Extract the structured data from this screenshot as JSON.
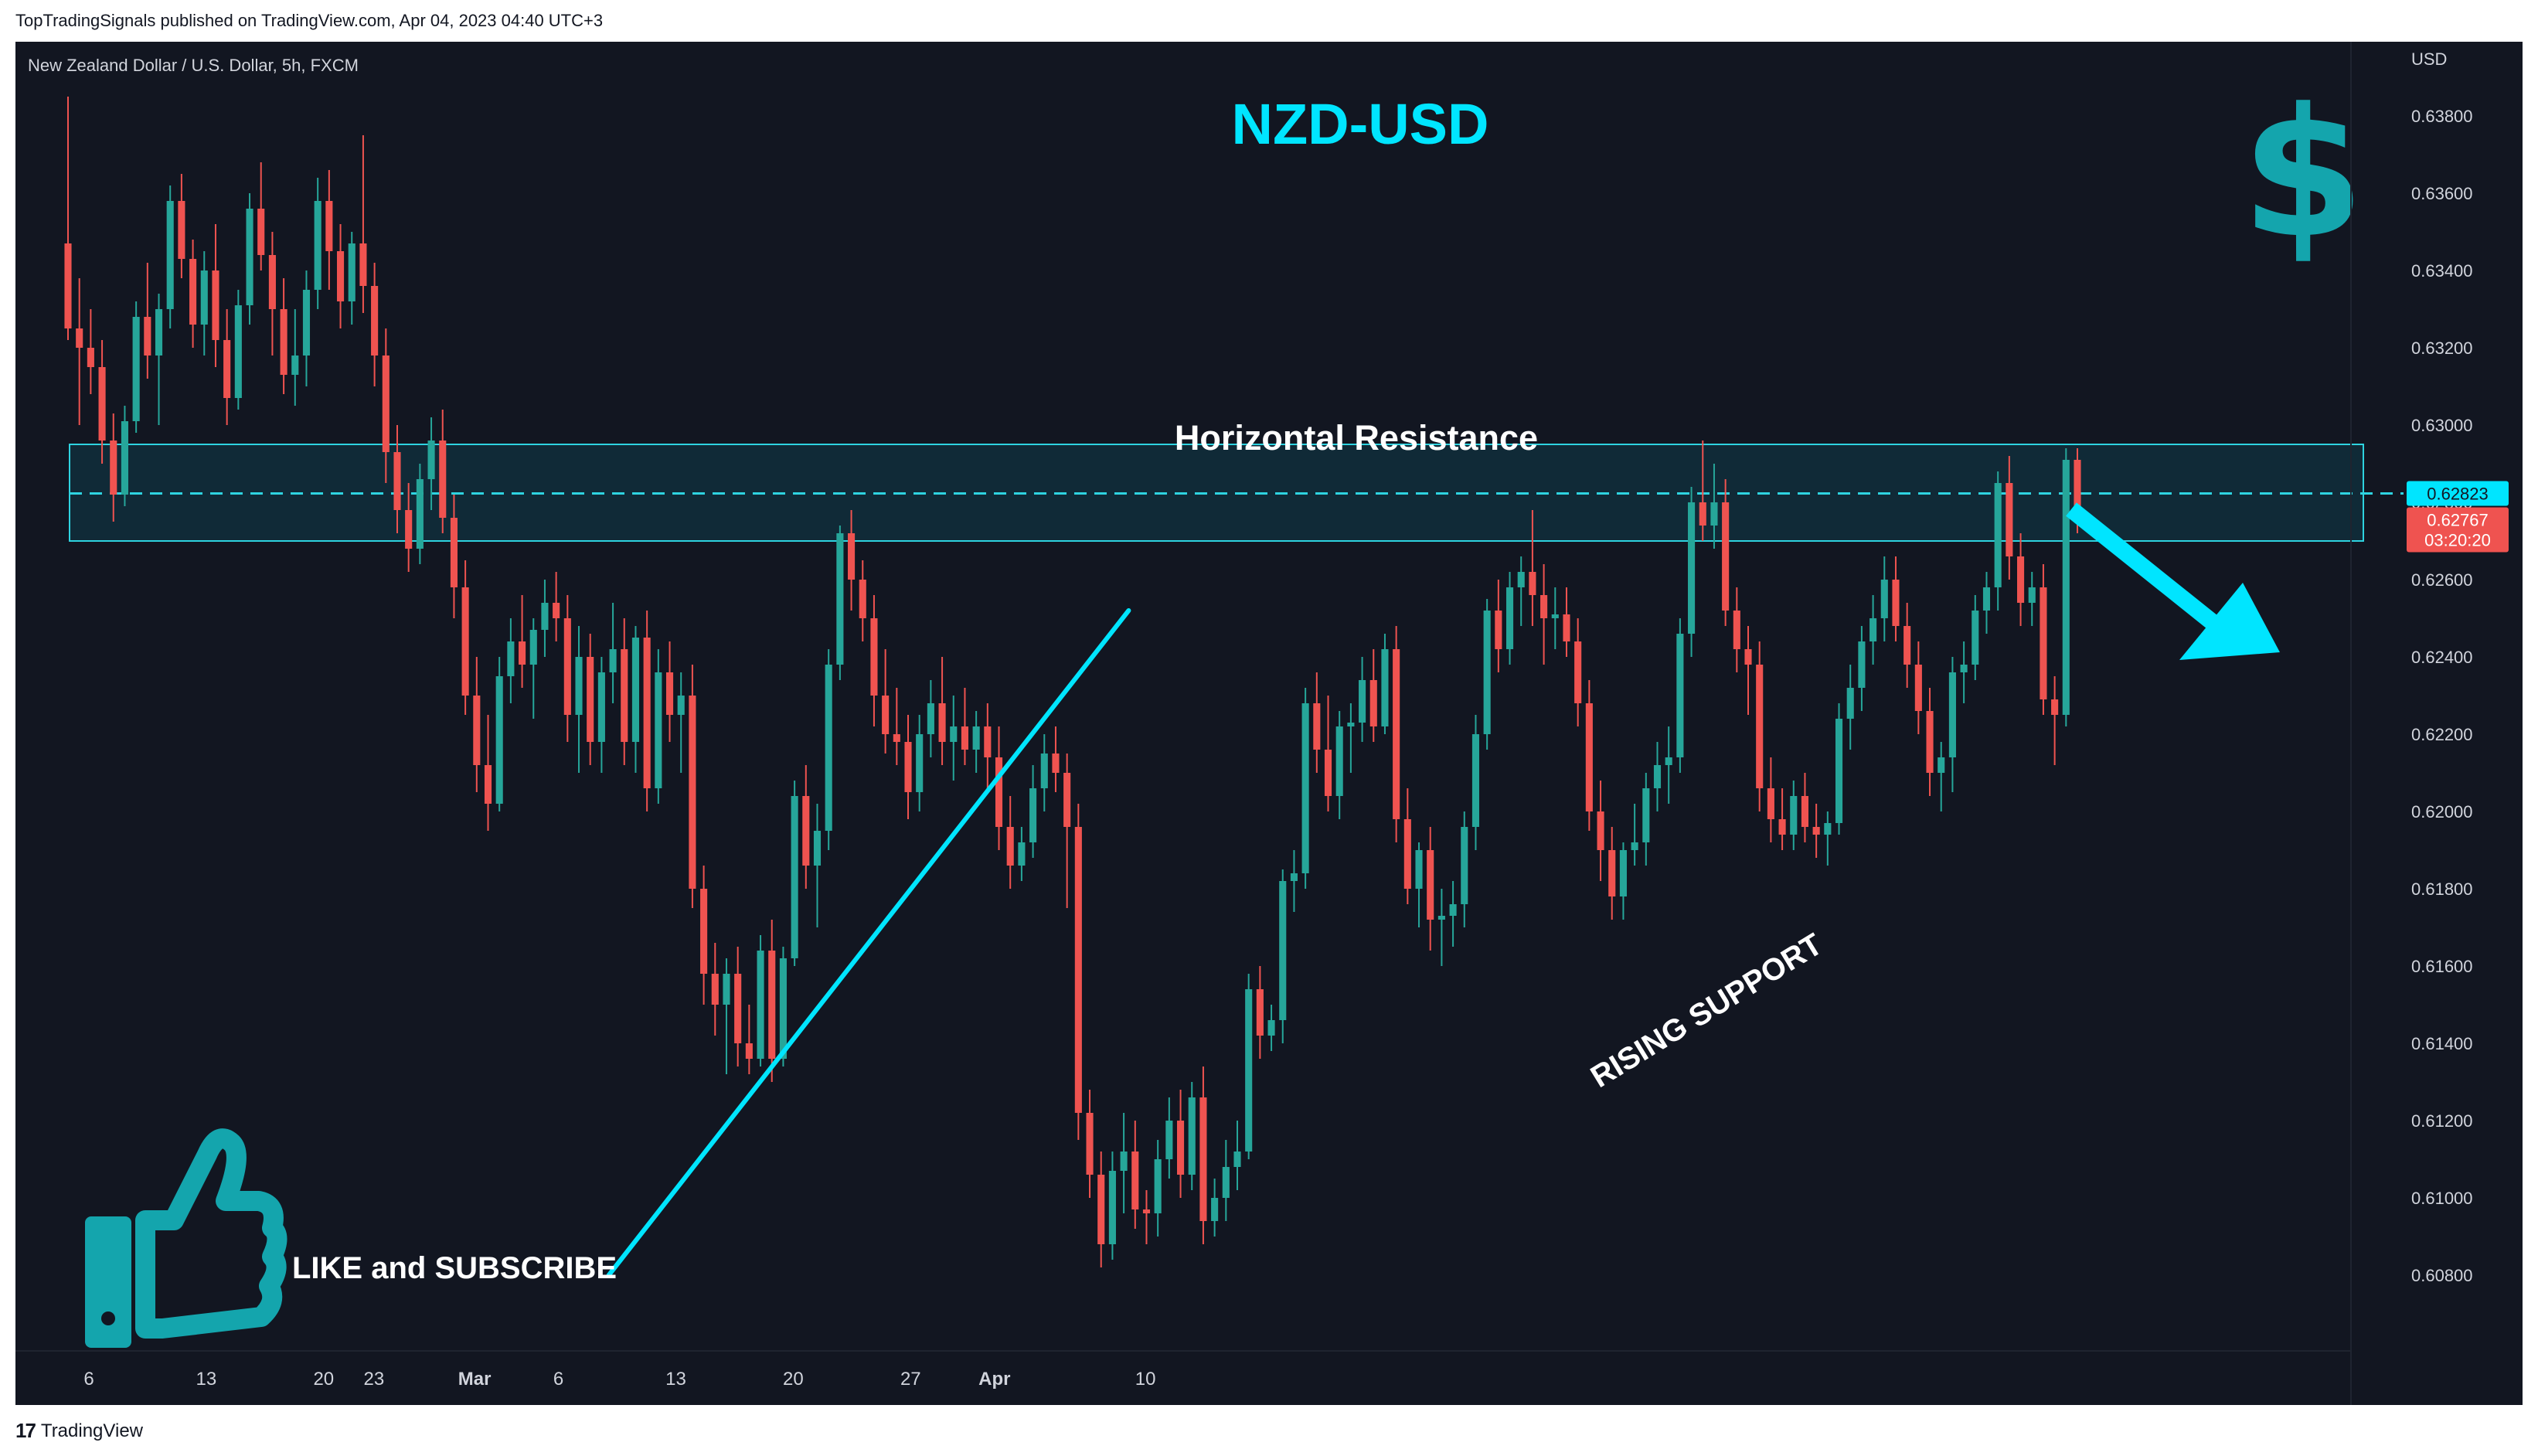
{
  "header": {
    "publish_text": "TopTradingSignals published on TradingView.com, Apr 04, 2023 04:40 UTC+3"
  },
  "footer": {
    "brand_icon": "tradingview-logo-icon",
    "brand_text": "TradingView"
  },
  "chart_data": {
    "type": "candlestick",
    "title": "NZD-USD",
    "symbol_label": "New Zealand Dollar / U.S. Dollar, 5h, FXCM",
    "y_axis_label": "USD",
    "y_ticks": [
      "0.63800",
      "0.63600",
      "0.63400",
      "0.63200",
      "0.63000",
      "0.62800",
      "0.62600",
      "0.62400",
      "0.62200",
      "0.62000",
      "0.61800",
      "0.61600",
      "0.61400",
      "0.61200",
      "0.61000",
      "0.60800"
    ],
    "x_ticks": [
      "6",
      "13",
      "20",
      "23",
      "Mar",
      "6",
      "13",
      "20",
      "27",
      "Apr",
      "10"
    ],
    "ylim": [
      0.6072,
      0.639
    ],
    "price_labels": {
      "resistance_level": "0.62823",
      "last_price": "0.62767",
      "countdown": "03:20:20"
    },
    "annotations": {
      "resistance_label": "Horizontal Resistance",
      "support_label": "RISING SUPPORT",
      "cta_label": "LIKE and SUBSCRIBE"
    },
    "resistance_zone": [
      0.627,
      0.6295
    ],
    "resistance_line": 0.62823,
    "support_line": [
      {
        "date": "2023-03-09",
        "price": 0.608
      },
      {
        "date": "2023-04-09",
        "price": 0.6252
      }
    ],
    "colors": {
      "background": "#121621",
      "up": "#26a69a",
      "down": "#ef5350",
      "accent": "#00e5ff",
      "icon": "#14a5ad",
      "text": "#ffffff"
    },
    "icons": [
      "dollar-sign-icon",
      "thumbs-up-icon",
      "down-right-arrow-icon"
    ],
    "ohlc": [
      {
        "o": 0.6347,
        "h": 0.6385,
        "l": 0.6322,
        "c": 0.6325
      },
      {
        "o": 0.6325,
        "h": 0.6338,
        "l": 0.63,
        "c": 0.632
      },
      {
        "o": 0.632,
        "h": 0.633,
        "l": 0.6308,
        "c": 0.6315
      },
      {
        "o": 0.6315,
        "h": 0.6322,
        "l": 0.629,
        "c": 0.6296
      },
      {
        "o": 0.6296,
        "h": 0.6303,
        "l": 0.6275,
        "c": 0.6282
      },
      {
        "o": 0.6282,
        "h": 0.6305,
        "l": 0.6279,
        "c": 0.6301
      },
      {
        "o": 0.6301,
        "h": 0.6332,
        "l": 0.6298,
        "c": 0.6328
      },
      {
        "o": 0.6328,
        "h": 0.6342,
        "l": 0.6312,
        "c": 0.6318
      },
      {
        "o": 0.6318,
        "h": 0.6334,
        "l": 0.63,
        "c": 0.633
      },
      {
        "o": 0.633,
        "h": 0.6362,
        "l": 0.6325,
        "c": 0.6358
      },
      {
        "o": 0.6358,
        "h": 0.6365,
        "l": 0.6338,
        "c": 0.6343
      },
      {
        "o": 0.6343,
        "h": 0.6348,
        "l": 0.632,
        "c": 0.6326
      },
      {
        "o": 0.6326,
        "h": 0.6345,
        "l": 0.6318,
        "c": 0.634
      },
      {
        "o": 0.634,
        "h": 0.6352,
        "l": 0.6315,
        "c": 0.6322
      },
      {
        "o": 0.6322,
        "h": 0.633,
        "l": 0.63,
        "c": 0.6307
      },
      {
        "o": 0.6307,
        "h": 0.6335,
        "l": 0.6304,
        "c": 0.6331
      },
      {
        "o": 0.6331,
        "h": 0.636,
        "l": 0.6326,
        "c": 0.6356
      },
      {
        "o": 0.6356,
        "h": 0.6368,
        "l": 0.634,
        "c": 0.6344
      },
      {
        "o": 0.6344,
        "h": 0.635,
        "l": 0.6318,
        "c": 0.633
      },
      {
        "o": 0.633,
        "h": 0.6338,
        "l": 0.6308,
        "c": 0.6313
      },
      {
        "o": 0.6313,
        "h": 0.633,
        "l": 0.6305,
        "c": 0.6318
      },
      {
        "o": 0.6318,
        "h": 0.634,
        "l": 0.631,
        "c": 0.6335
      },
      {
        "o": 0.6335,
        "h": 0.6364,
        "l": 0.633,
        "c": 0.6358
      },
      {
        "o": 0.6358,
        "h": 0.6366,
        "l": 0.6335,
        "c": 0.6345
      },
      {
        "o": 0.6345,
        "h": 0.6352,
        "l": 0.6325,
        "c": 0.6332
      },
      {
        "o": 0.6332,
        "h": 0.635,
        "l": 0.6326,
        "c": 0.6347
      },
      {
        "o": 0.6347,
        "h": 0.6375,
        "l": 0.6329,
        "c": 0.6336
      },
      {
        "o": 0.6336,
        "h": 0.6342,
        "l": 0.631,
        "c": 0.6318
      },
      {
        "o": 0.6318,
        "h": 0.6325,
        "l": 0.6285,
        "c": 0.6293
      },
      {
        "o": 0.6293,
        "h": 0.63,
        "l": 0.6272,
        "c": 0.6278
      },
      {
        "o": 0.6278,
        "h": 0.6285,
        "l": 0.6262,
        "c": 0.6268
      },
      {
        "o": 0.6268,
        "h": 0.629,
        "l": 0.6264,
        "c": 0.6286
      },
      {
        "o": 0.6286,
        "h": 0.6302,
        "l": 0.6278,
        "c": 0.6296
      },
      {
        "o": 0.6296,
        "h": 0.6304,
        "l": 0.6272,
        "c": 0.6276
      },
      {
        "o": 0.6276,
        "h": 0.6282,
        "l": 0.625,
        "c": 0.6258
      },
      {
        "o": 0.6258,
        "h": 0.6265,
        "l": 0.6225,
        "c": 0.623
      },
      {
        "o": 0.623,
        "h": 0.624,
        "l": 0.6205,
        "c": 0.6212
      },
      {
        "o": 0.6212,
        "h": 0.6225,
        "l": 0.6195,
        "c": 0.6202
      },
      {
        "o": 0.6202,
        "h": 0.624,
        "l": 0.62,
        "c": 0.6235
      },
      {
        "o": 0.6235,
        "h": 0.625,
        "l": 0.6228,
        "c": 0.6244
      },
      {
        "o": 0.6244,
        "h": 0.6256,
        "l": 0.6232,
        "c": 0.6238
      },
      {
        "o": 0.6238,
        "h": 0.625,
        "l": 0.6224,
        "c": 0.6247
      },
      {
        "o": 0.6247,
        "h": 0.626,
        "l": 0.624,
        "c": 0.6254
      },
      {
        "o": 0.6254,
        "h": 0.6262,
        "l": 0.6244,
        "c": 0.625
      },
      {
        "o": 0.625,
        "h": 0.6256,
        "l": 0.6218,
        "c": 0.6225
      },
      {
        "o": 0.6225,
        "h": 0.6248,
        "l": 0.621,
        "c": 0.624
      },
      {
        "o": 0.624,
        "h": 0.6246,
        "l": 0.6212,
        "c": 0.6218
      },
      {
        "o": 0.6218,
        "h": 0.624,
        "l": 0.621,
        "c": 0.6236
      },
      {
        "o": 0.6236,
        "h": 0.6254,
        "l": 0.6228,
        "c": 0.6242
      },
      {
        "o": 0.6242,
        "h": 0.625,
        "l": 0.6212,
        "c": 0.6218
      },
      {
        "o": 0.6218,
        "h": 0.6248,
        "l": 0.621,
        "c": 0.6245
      },
      {
        "o": 0.6245,
        "h": 0.6252,
        "l": 0.62,
        "c": 0.6206
      },
      {
        "o": 0.6206,
        "h": 0.6242,
        "l": 0.6202,
        "c": 0.6236
      },
      {
        "o": 0.6236,
        "h": 0.6244,
        "l": 0.6218,
        "c": 0.6225
      },
      {
        "o": 0.6225,
        "h": 0.6236,
        "l": 0.621,
        "c": 0.623
      },
      {
        "o": 0.623,
        "h": 0.6238,
        "l": 0.6175,
        "c": 0.618
      },
      {
        "o": 0.618,
        "h": 0.6186,
        "l": 0.615,
        "c": 0.6158
      },
      {
        "o": 0.6158,
        "h": 0.6166,
        "l": 0.6142,
        "c": 0.615
      },
      {
        "o": 0.615,
        "h": 0.6162,
        "l": 0.6132,
        "c": 0.6158
      },
      {
        "o": 0.6158,
        "h": 0.6165,
        "l": 0.6134,
        "c": 0.614
      },
      {
        "o": 0.614,
        "h": 0.615,
        "l": 0.6132,
        "c": 0.6136
      },
      {
        "o": 0.6136,
        "h": 0.6168,
        "l": 0.6134,
        "c": 0.6164
      },
      {
        "o": 0.6164,
        "h": 0.6172,
        "l": 0.613,
        "c": 0.6136
      },
      {
        "o": 0.6136,
        "h": 0.6165,
        "l": 0.6134,
        "c": 0.6162
      },
      {
        "o": 0.6162,
        "h": 0.6208,
        "l": 0.616,
        "c": 0.6204
      },
      {
        "o": 0.6204,
        "h": 0.6212,
        "l": 0.618,
        "c": 0.6186
      },
      {
        "o": 0.6186,
        "h": 0.6202,
        "l": 0.617,
        "c": 0.6195
      },
      {
        "o": 0.6195,
        "h": 0.6242,
        "l": 0.619,
        "c": 0.6238
      },
      {
        "o": 0.6238,
        "h": 0.6274,
        "l": 0.6234,
        "c": 0.6272
      },
      {
        "o": 0.6272,
        "h": 0.6278,
        "l": 0.6252,
        "c": 0.626
      },
      {
        "o": 0.626,
        "h": 0.6265,
        "l": 0.6244,
        "c": 0.625
      },
      {
        "o": 0.625,
        "h": 0.6256,
        "l": 0.6222,
        "c": 0.623
      },
      {
        "o": 0.623,
        "h": 0.6242,
        "l": 0.6215,
        "c": 0.622
      },
      {
        "o": 0.622,
        "h": 0.6232,
        "l": 0.6212,
        "c": 0.6218
      },
      {
        "o": 0.6218,
        "h": 0.6225,
        "l": 0.6198,
        "c": 0.6205
      },
      {
        "o": 0.6205,
        "h": 0.6225,
        "l": 0.62,
        "c": 0.622
      },
      {
        "o": 0.622,
        "h": 0.6234,
        "l": 0.6214,
        "c": 0.6228
      },
      {
        "o": 0.6228,
        "h": 0.624,
        "l": 0.6212,
        "c": 0.6218
      },
      {
        "o": 0.6218,
        "h": 0.623,
        "l": 0.6208,
        "c": 0.6222
      },
      {
        "o": 0.6222,
        "h": 0.6232,
        "l": 0.6212,
        "c": 0.6216
      },
      {
        "o": 0.6216,
        "h": 0.6226,
        "l": 0.621,
        "c": 0.6222
      },
      {
        "o": 0.6222,
        "h": 0.6228,
        "l": 0.6206,
        "c": 0.6214
      },
      {
        "o": 0.6214,
        "h": 0.6222,
        "l": 0.619,
        "c": 0.6196
      },
      {
        "o": 0.6196,
        "h": 0.6204,
        "l": 0.618,
        "c": 0.6186
      },
      {
        "o": 0.6186,
        "h": 0.6196,
        "l": 0.6182,
        "c": 0.6192
      },
      {
        "o": 0.6192,
        "h": 0.6212,
        "l": 0.6188,
        "c": 0.6206
      },
      {
        "o": 0.6206,
        "h": 0.622,
        "l": 0.62,
        "c": 0.6215
      },
      {
        "o": 0.6215,
        "h": 0.6222,
        "l": 0.6205,
        "c": 0.621
      },
      {
        "o": 0.621,
        "h": 0.6215,
        "l": 0.6175,
        "c": 0.6196
      },
      {
        "o": 0.6196,
        "h": 0.6202,
        "l": 0.6115,
        "c": 0.6122
      },
      {
        "o": 0.6122,
        "h": 0.6128,
        "l": 0.61,
        "c": 0.6106
      },
      {
        "o": 0.6106,
        "h": 0.6112,
        "l": 0.6082,
        "c": 0.6088
      },
      {
        "o": 0.6088,
        "h": 0.6112,
        "l": 0.6084,
        "c": 0.6107
      },
      {
        "o": 0.6107,
        "h": 0.6122,
        "l": 0.6096,
        "c": 0.6112
      },
      {
        "o": 0.6112,
        "h": 0.612,
        "l": 0.6092,
        "c": 0.6097
      },
      {
        "o": 0.6097,
        "h": 0.6102,
        "l": 0.6088,
        "c": 0.6096
      },
      {
        "o": 0.6096,
        "h": 0.6115,
        "l": 0.609,
        "c": 0.611
      },
      {
        "o": 0.611,
        "h": 0.6126,
        "l": 0.6105,
        "c": 0.612
      },
      {
        "o": 0.612,
        "h": 0.6128,
        "l": 0.61,
        "c": 0.6106
      },
      {
        "o": 0.6106,
        "h": 0.613,
        "l": 0.6102,
        "c": 0.6126
      },
      {
        "o": 0.6126,
        "h": 0.6134,
        "l": 0.6088,
        "c": 0.6094
      },
      {
        "o": 0.6094,
        "h": 0.6105,
        "l": 0.609,
        "c": 0.61
      },
      {
        "o": 0.61,
        "h": 0.6115,
        "l": 0.6094,
        "c": 0.6108
      },
      {
        "o": 0.6108,
        "h": 0.612,
        "l": 0.6102,
        "c": 0.6112
      },
      {
        "o": 0.6112,
        "h": 0.6158,
        "l": 0.611,
        "c": 0.6154
      },
      {
        "o": 0.6154,
        "h": 0.616,
        "l": 0.6136,
        "c": 0.6142
      },
      {
        "o": 0.6142,
        "h": 0.615,
        "l": 0.6138,
        "c": 0.6146
      },
      {
        "o": 0.6146,
        "h": 0.6185,
        "l": 0.614,
        "c": 0.6182
      },
      {
        "o": 0.6182,
        "h": 0.619,
        "l": 0.6174,
        "c": 0.6184
      },
      {
        "o": 0.6184,
        "h": 0.6232,
        "l": 0.618,
        "c": 0.6228
      },
      {
        "o": 0.6228,
        "h": 0.6236,
        "l": 0.621,
        "c": 0.6216
      },
      {
        "o": 0.6216,
        "h": 0.623,
        "l": 0.62,
        "c": 0.6204
      },
      {
        "o": 0.6204,
        "h": 0.6226,
        "l": 0.6198,
        "c": 0.6222
      },
      {
        "o": 0.6222,
        "h": 0.6228,
        "l": 0.621,
        "c": 0.6223
      },
      {
        "o": 0.6223,
        "h": 0.624,
        "l": 0.6218,
        "c": 0.6234
      },
      {
        "o": 0.6234,
        "h": 0.6242,
        "l": 0.6218,
        "c": 0.6222
      },
      {
        "o": 0.6222,
        "h": 0.6246,
        "l": 0.622,
        "c": 0.6242
      },
      {
        "o": 0.6242,
        "h": 0.6248,
        "l": 0.6192,
        "c": 0.6198
      },
      {
        "o": 0.6198,
        "h": 0.6206,
        "l": 0.6176,
        "c": 0.618
      },
      {
        "o": 0.618,
        "h": 0.6192,
        "l": 0.617,
        "c": 0.619
      },
      {
        "o": 0.619,
        "h": 0.6196,
        "l": 0.6164,
        "c": 0.6172
      },
      {
        "o": 0.6172,
        "h": 0.618,
        "l": 0.616,
        "c": 0.6173
      },
      {
        "o": 0.6173,
        "h": 0.6182,
        "l": 0.6165,
        "c": 0.6176
      },
      {
        "o": 0.6176,
        "h": 0.62,
        "l": 0.617,
        "c": 0.6196
      },
      {
        "o": 0.6196,
        "h": 0.6225,
        "l": 0.619,
        "c": 0.622
      },
      {
        "o": 0.622,
        "h": 0.6255,
        "l": 0.6216,
        "c": 0.6252
      },
      {
        "o": 0.6252,
        "h": 0.626,
        "l": 0.6236,
        "c": 0.6242
      },
      {
        "o": 0.6242,
        "h": 0.6262,
        "l": 0.6238,
        "c": 0.6258
      },
      {
        "o": 0.6258,
        "h": 0.6266,
        "l": 0.6248,
        "c": 0.6262
      },
      {
        "o": 0.6262,
        "h": 0.6278,
        "l": 0.6248,
        "c": 0.6256
      },
      {
        "o": 0.6256,
        "h": 0.6264,
        "l": 0.6238,
        "c": 0.625
      },
      {
        "o": 0.625,
        "h": 0.6258,
        "l": 0.6242,
        "c": 0.6251
      },
      {
        "o": 0.6251,
        "h": 0.6258,
        "l": 0.624,
        "c": 0.6244
      },
      {
        "o": 0.6244,
        "h": 0.625,
        "l": 0.6222,
        "c": 0.6228
      },
      {
        "o": 0.6228,
        "h": 0.6234,
        "l": 0.6195,
        "c": 0.62
      },
      {
        "o": 0.62,
        "h": 0.6208,
        "l": 0.6182,
        "c": 0.619
      },
      {
        "o": 0.619,
        "h": 0.6196,
        "l": 0.6172,
        "c": 0.6178
      },
      {
        "o": 0.6178,
        "h": 0.6192,
        "l": 0.6172,
        "c": 0.619
      },
      {
        "o": 0.619,
        "h": 0.6202,
        "l": 0.6186,
        "c": 0.6192
      },
      {
        "o": 0.6192,
        "h": 0.621,
        "l": 0.6186,
        "c": 0.6206
      },
      {
        "o": 0.6206,
        "h": 0.6218,
        "l": 0.62,
        "c": 0.6212
      },
      {
        "o": 0.6212,
        "h": 0.6222,
        "l": 0.6202,
        "c": 0.6214
      },
      {
        "o": 0.6214,
        "h": 0.625,
        "l": 0.621,
        "c": 0.6246
      },
      {
        "o": 0.6246,
        "h": 0.6284,
        "l": 0.624,
        "c": 0.628
      },
      {
        "o": 0.628,
        "h": 0.6296,
        "l": 0.627,
        "c": 0.6274
      },
      {
        "o": 0.6274,
        "h": 0.629,
        "l": 0.6268,
        "c": 0.628
      },
      {
        "o": 0.628,
        "h": 0.6286,
        "l": 0.6248,
        "c": 0.6252
      },
      {
        "o": 0.6252,
        "h": 0.6258,
        "l": 0.6236,
        "c": 0.6242
      },
      {
        "o": 0.6242,
        "h": 0.6248,
        "l": 0.6225,
        "c": 0.6238
      },
      {
        "o": 0.6238,
        "h": 0.6244,
        "l": 0.62,
        "c": 0.6206
      },
      {
        "o": 0.6206,
        "h": 0.6214,
        "l": 0.6192,
        "c": 0.6198
      },
      {
        "o": 0.6198,
        "h": 0.6206,
        "l": 0.619,
        "c": 0.6194
      },
      {
        "o": 0.6194,
        "h": 0.6208,
        "l": 0.619,
        "c": 0.6204
      },
      {
        "o": 0.6204,
        "h": 0.621,
        "l": 0.6192,
        "c": 0.6196
      },
      {
        "o": 0.6196,
        "h": 0.6202,
        "l": 0.6188,
        "c": 0.6194
      },
      {
        "o": 0.6194,
        "h": 0.62,
        "l": 0.6186,
        "c": 0.6197
      },
      {
        "o": 0.6197,
        "h": 0.6228,
        "l": 0.6194,
        "c": 0.6224
      },
      {
        "o": 0.6224,
        "h": 0.6238,
        "l": 0.6216,
        "c": 0.6232
      },
      {
        "o": 0.6232,
        "h": 0.6248,
        "l": 0.6226,
        "c": 0.6244
      },
      {
        "o": 0.6244,
        "h": 0.6256,
        "l": 0.6238,
        "c": 0.625
      },
      {
        "o": 0.625,
        "h": 0.6266,
        "l": 0.6244,
        "c": 0.626
      },
      {
        "o": 0.626,
        "h": 0.6266,
        "l": 0.6244,
        "c": 0.6248
      },
      {
        "o": 0.6248,
        "h": 0.6254,
        "l": 0.6232,
        "c": 0.6238
      },
      {
        "o": 0.6238,
        "h": 0.6244,
        "l": 0.622,
        "c": 0.6226
      },
      {
        "o": 0.6226,
        "h": 0.6232,
        "l": 0.6204,
        "c": 0.621
      },
      {
        "o": 0.621,
        "h": 0.6218,
        "l": 0.62,
        "c": 0.6214
      },
      {
        "o": 0.6214,
        "h": 0.624,
        "l": 0.6205,
        "c": 0.6236
      },
      {
        "o": 0.6236,
        "h": 0.6244,
        "l": 0.6228,
        "c": 0.6238
      },
      {
        "o": 0.6238,
        "h": 0.6256,
        "l": 0.6234,
        "c": 0.6252
      },
      {
        "o": 0.6252,
        "h": 0.6262,
        "l": 0.6246,
        "c": 0.6258
      },
      {
        "o": 0.6258,
        "h": 0.6288,
        "l": 0.6252,
        "c": 0.6285
      },
      {
        "o": 0.6285,
        "h": 0.6292,
        "l": 0.626,
        "c": 0.6266
      },
      {
        "o": 0.6266,
        "h": 0.6272,
        "l": 0.6248,
        "c": 0.6254
      },
      {
        "o": 0.6254,
        "h": 0.6262,
        "l": 0.6248,
        "c": 0.6258
      },
      {
        "o": 0.6258,
        "h": 0.6264,
        "l": 0.6225,
        "c": 0.6229
      },
      {
        "o": 0.6229,
        "h": 0.6235,
        "l": 0.6212,
        "c": 0.6225
      },
      {
        "o": 0.6225,
        "h": 0.6294,
        "l": 0.6222,
        "c": 0.6291
      },
      {
        "o": 0.6291,
        "h": 0.6294,
        "l": 0.6272,
        "c": 0.6277
      }
    ]
  }
}
